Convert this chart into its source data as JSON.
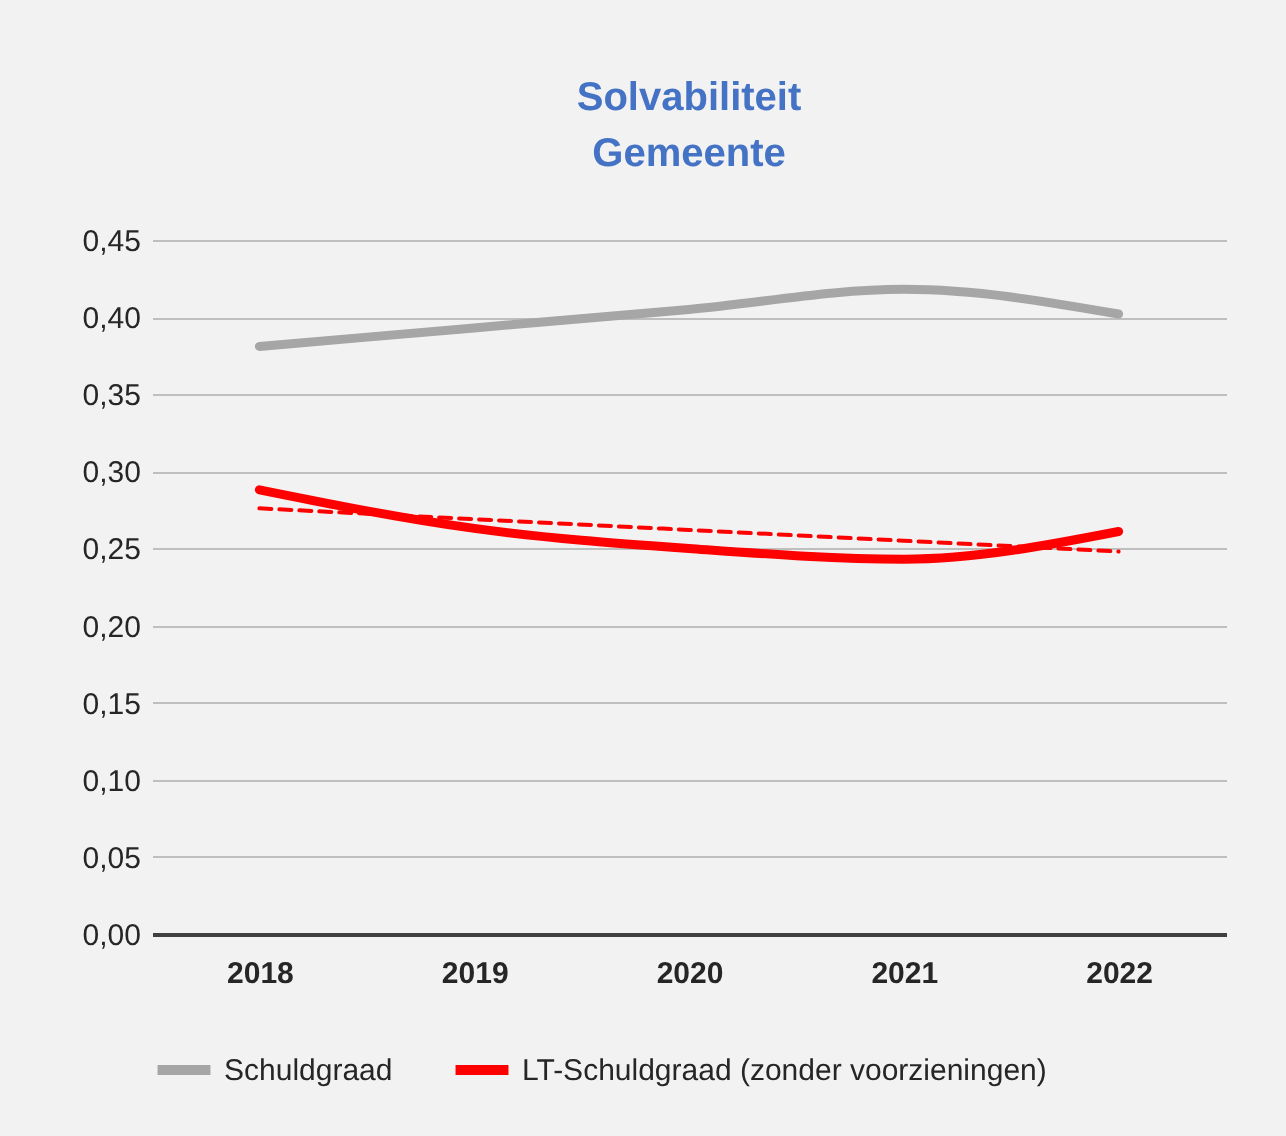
{
  "chart_data": {
    "type": "line",
    "title": "Solvabiliteit\nGemeente",
    "categories": [
      "2018",
      "2019",
      "2020",
      "2021",
      "2022"
    ],
    "series": [
      {
        "name": "Schuldgraad",
        "color": "#a6a6a6",
        "values": [
          0.381,
          0.393,
          0.405,
          0.418,
          0.402
        ]
      },
      {
        "name": "LT-Schuldgraad (zonder voorzieningen)",
        "color": "#ff0000",
        "values": [
          0.288,
          0.263,
          0.25,
          0.243,
          0.261
        ]
      },
      {
        "type": "line",
        "color": "#ff0000",
        "line_style": "dashed",
        "values": [
          0.276,
          0.269,
          0.262,
          0.255,
          0.248
        ]
      }
    ],
    "ylim": [
      0,
      0.45
    ],
    "yticks": [
      {
        "value": 0,
        "label": "0,00"
      },
      {
        "value": 0.05,
        "label": "0,05"
      },
      {
        "value": 0.1,
        "label": "0,10"
      },
      {
        "value": 0.15,
        "label": "0,15"
      },
      {
        "value": 0.2,
        "label": "0,20"
      },
      {
        "value": 0.25,
        "label": "0,25"
      },
      {
        "value": 0.3,
        "label": "0,30"
      },
      {
        "value": 0.35,
        "label": "0,35"
      },
      {
        "value": 0.4,
        "label": "0,40"
      },
      {
        "value": 0.45,
        "label": "0,45"
      }
    ],
    "grid": "y",
    "legend": "bottom"
  }
}
